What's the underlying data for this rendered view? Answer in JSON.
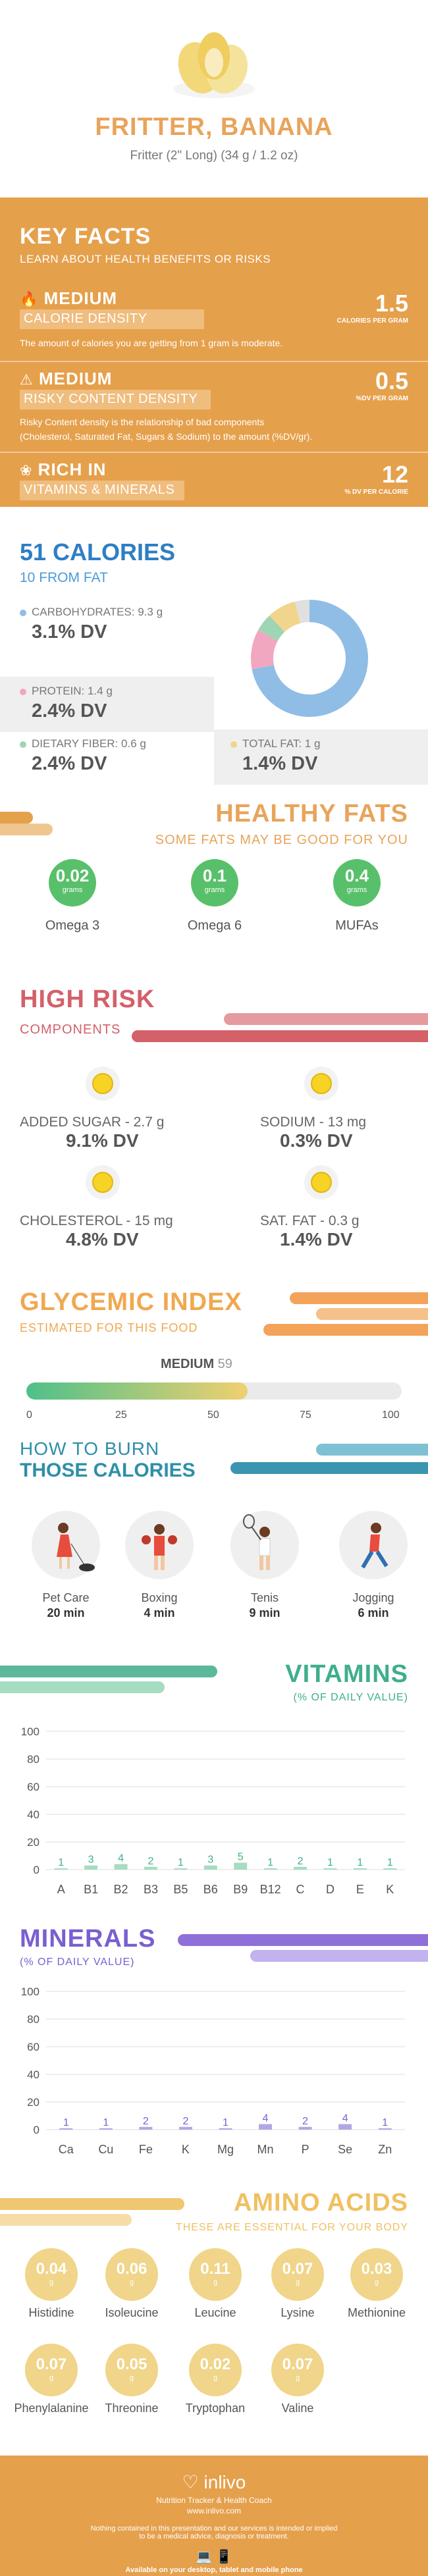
{
  "header": {
    "title": "FRITTER, BANANA",
    "subtitle": "Fritter (2\" Long) (34 g / 1.2 oz)"
  },
  "key_facts": {
    "title": "KEY FACTS",
    "subtitle": "LEARN ABOUT HEALTH BENEFITS OR RISKS",
    "calorie_density": {
      "level": "MEDIUM",
      "label": "CALORIE DENSITY",
      "description": "The amount of calories you are getting from 1 gram is moderate.",
      "value": "1.5",
      "unit": "CALORIES PER GRAM"
    },
    "risky_content": {
      "level": "MEDIUM",
      "label": "RISKY CONTENT DENSITY",
      "description_1": "Risky Content density is the relationship of bad components",
      "description_2": "(Cholesterol, Saturated Fat, Sugars & Sodium) to the amount (%DV/gr).",
      "value": "0.5",
      "unit": "%DV PER GRAM"
    },
    "rich_in": {
      "level": "RICH  IN",
      "label": "VITAMINS & MINERALS",
      "value": "12",
      "unit": "% DV PER CALORIE"
    }
  },
  "calories": {
    "title": "51 CALORIES",
    "from_fat": "10 FROM FAT",
    "carbs_label": "CARBOHYDRATES: 9.3 g",
    "carbs_dv": "3.1% DV",
    "protein_label": "PROTEIN: 1.4 g",
    "protein_dv": "2.4% DV",
    "fiber_label": "DIETARY FIBER: 0.6 g",
    "fiber_dv": "2.4% DV",
    "fat_label": "TOTAL FAT: 1 g",
    "fat_dv": "1.4% DV",
    "donut": [
      {
        "name": "carbohydrates",
        "value": 72,
        "color": "#8fbde6"
      },
      {
        "name": "protein",
        "value": 11,
        "color": "#f1a7bf"
      },
      {
        "name": "fiber",
        "value": 5,
        "color": "#9fd5b4"
      },
      {
        "name": "fat",
        "value": 8,
        "color": "#f1d58c"
      },
      {
        "name": "other",
        "value": 4,
        "color": "#e0e0e0"
      }
    ],
    "colors": {
      "carbs": "#8fbde6",
      "protein": "#f1a7bf",
      "fiber": "#9fd5b4",
      "fat": "#f1d58c"
    }
  },
  "healthy_fats": {
    "title": "HEALTHY FATS",
    "subtitle": "SOME FATS MAY BE GOOD FOR YOU",
    "items": [
      {
        "value": "0.02",
        "unit": "grams",
        "name": "Omega 3"
      },
      {
        "value": "0.1",
        "unit": "grams",
        "name": "Omega 6"
      },
      {
        "value": "0.4",
        "unit": "grams",
        "name": "MUFAs"
      }
    ]
  },
  "high_risk": {
    "title": "HIGH RISK",
    "subtitle": "COMPONENTS",
    "items": [
      {
        "label": "ADDED SUGAR - 2.7 g",
        "dv": "9.1% DV",
        "icon": "smile-icon"
      },
      {
        "label": "SODIUM - 13 mg",
        "dv": "0.3% DV",
        "icon": "grin-icon"
      },
      {
        "label": "CHOLESTEROL - 15 mg",
        "dv": "4.8% DV",
        "icon": "smile-icon"
      },
      {
        "label": "SAT. FAT - 0.3 g",
        "dv": "1.4% DV",
        "icon": "smile-icon"
      }
    ]
  },
  "glycemic": {
    "title": "GLYCEMIC INDEX",
    "subtitle": "ESTIMATED FOR THIS FOOD",
    "level": "MEDIUM",
    "value": "59",
    "value_num": 59,
    "ticks": [
      "0",
      "25",
      "50",
      "75",
      "100"
    ]
  },
  "burn": {
    "title_1": "HOW TO BURN",
    "title_2": "THOSE CALORIES",
    "activities": [
      {
        "name": "Pet Care",
        "minutes": "20 min",
        "icon": "dog-walking-icon"
      },
      {
        "name": "Boxing",
        "minutes": "4 min",
        "icon": "boxing-icon"
      },
      {
        "name": "Tenis",
        "minutes": "9 min",
        "icon": "tennis-icon"
      },
      {
        "name": "Jogging",
        "minutes": "6 min",
        "icon": "jogging-icon"
      }
    ]
  },
  "vitamins": {
    "title": "VITAMINS",
    "subtitle": "(% OF DAILY VALUE)",
    "chart_data": {
      "type": "bar",
      "categories": [
        "A",
        "B1",
        "B2",
        "B3",
        "B5",
        "B6",
        "B9",
        "B12",
        "C",
        "D",
        "E",
        "K"
      ],
      "values": [
        1,
        3,
        4,
        2,
        1,
        3,
        5,
        1,
        2,
        1,
        1,
        1
      ],
      "ylim": [
        0,
        100
      ],
      "yticks": [
        "100",
        "80",
        "60",
        "40",
        "20",
        "0"
      ],
      "grid": true,
      "color": "#a6dcc0"
    }
  },
  "minerals": {
    "title": "MINERALS",
    "subtitle": "(% OF DAILY VALUE)",
    "chart_data": {
      "type": "bar",
      "categories": [
        "Ca",
        "Cu",
        "Fe",
        "K",
        "Mg",
        "Mn",
        "P",
        "Se",
        "Zn"
      ],
      "values": [
        1,
        1,
        2,
        2,
        1,
        4,
        2,
        4,
        1
      ],
      "ylim": [
        0,
        100
      ],
      "yticks": [
        "100",
        "80",
        "60",
        "40",
        "20",
        "0"
      ],
      "grid": true,
      "color": "#b3a6e6"
    }
  },
  "amino": {
    "title": "AMINO ACIDS",
    "subtitle": "THESE ARE ESSENTIAL FOR YOUR BODY",
    "unit": "g",
    "items": [
      {
        "value": "0.04",
        "name": "Histidine"
      },
      {
        "value": "0.06",
        "name": "Isoleucine"
      },
      {
        "value": "0.11",
        "name": "Leucine"
      },
      {
        "value": "0.07",
        "name": "Lysine"
      },
      {
        "value": "0.03",
        "name": "Methionine"
      },
      {
        "value": "0.07",
        "name": "Phenylalanine"
      },
      {
        "value": "0.05",
        "name": "Threonine"
      },
      {
        "value": "0.02",
        "name": "Tryptophan"
      },
      {
        "value": "0.07",
        "name": "Valine"
      }
    ]
  },
  "footer": {
    "brand": "inlivo",
    "tagline": "Nutrition Tracker & Health Coach",
    "url": "www.inlivo.com",
    "disclaimer_1": "Nothing contained in this presentation and our services is intended or implied",
    "disclaimer_2": "to be a medical advice, diagnosis or treatment.",
    "available": "Available on your desktop, tablet and mobile phone"
  }
}
